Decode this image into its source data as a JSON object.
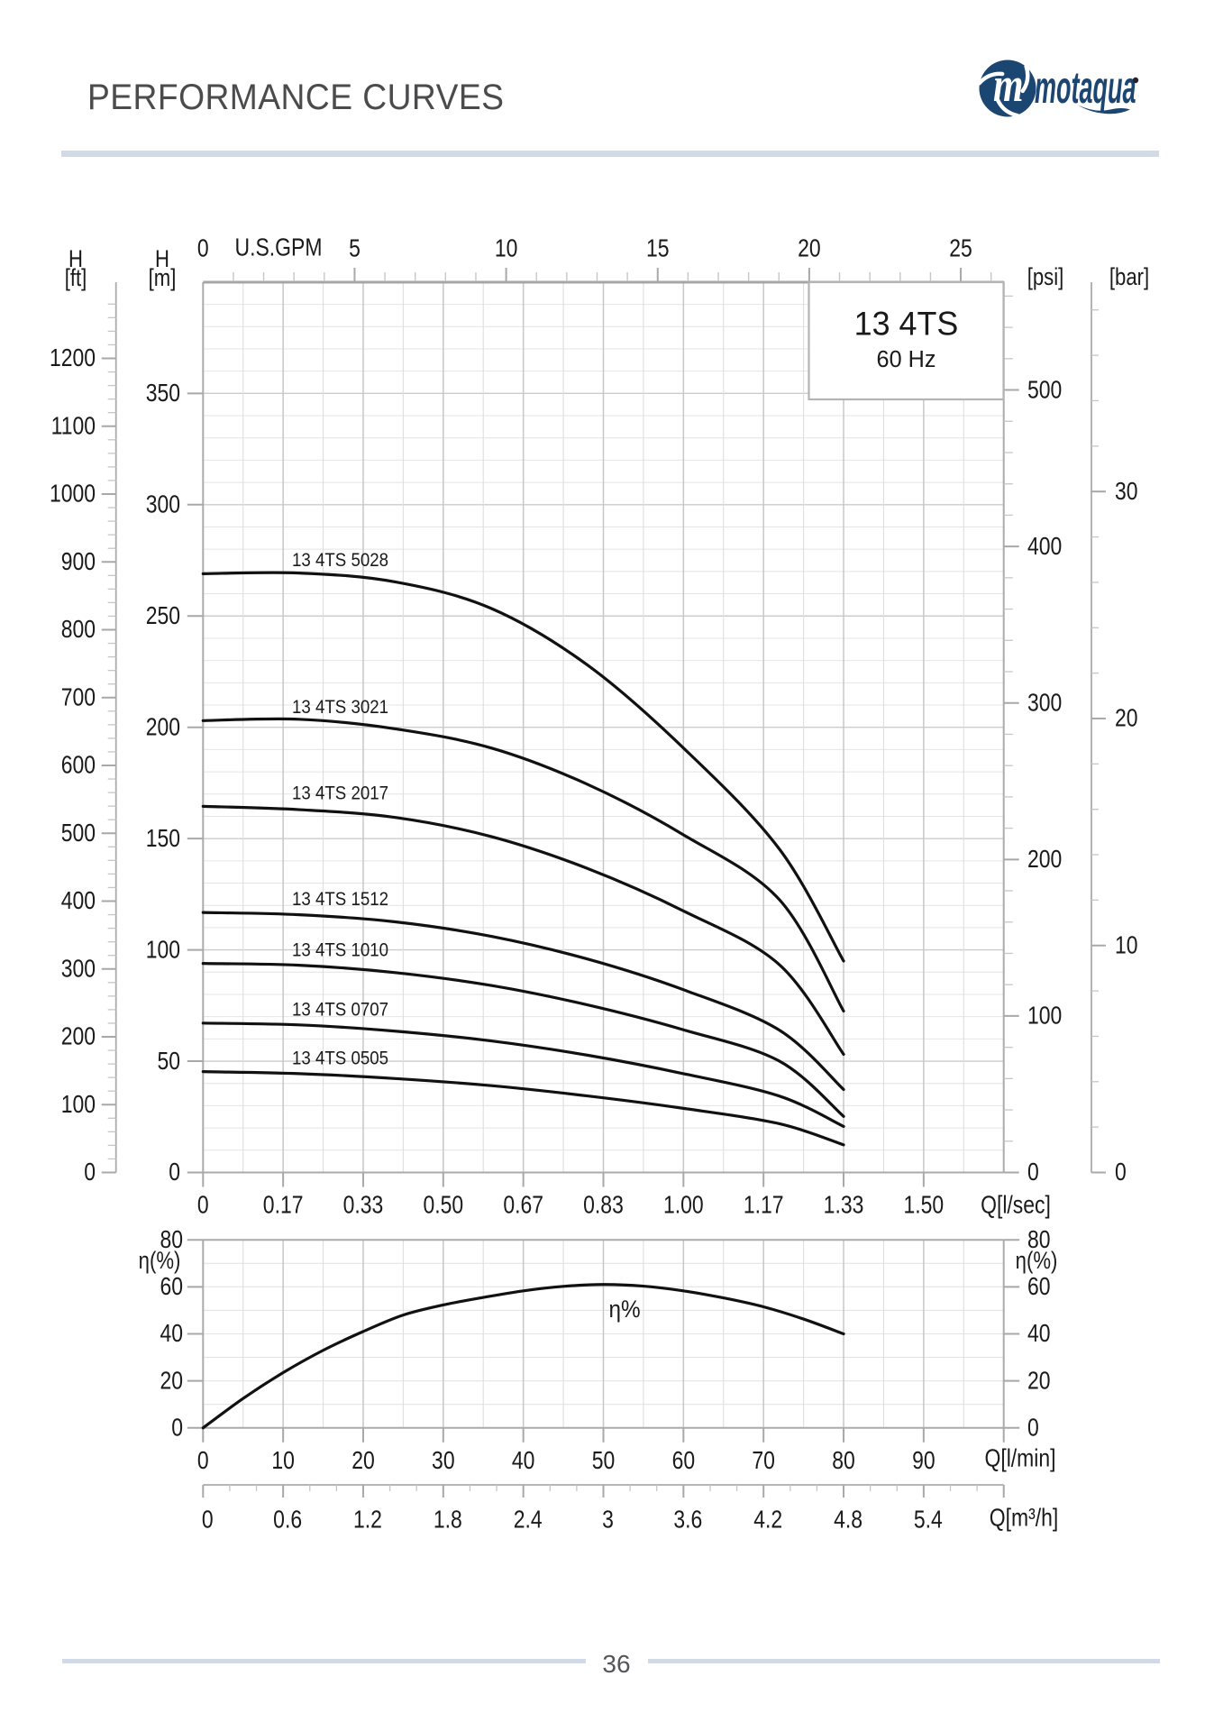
{
  "header": {
    "title": "PERFORMANCE CURVES",
    "rule_color": "#d2d9e7"
  },
  "logo": {
    "brand": "motaqua",
    "monogram": "m",
    "registered_mark": "®",
    "color": "#1c4672"
  },
  "footer": {
    "page_number": "36",
    "rule_color": "#d2d9e7"
  },
  "chart_data": [
    {
      "id": "head-curves",
      "type": "line",
      "title": "13 4TS",
      "subtitle": "60 Hz",
      "x_unit": "l/min",
      "x_range": [
        0,
        100
      ],
      "y_unit": "m",
      "y_range": [
        0,
        400
      ],
      "grid": "on",
      "legend_position": "labels-on-curves",
      "axes": {
        "top": {
          "title": "U.S.GPM",
          "ticks": [
            0,
            5,
            10,
            15,
            20,
            25
          ],
          "minor_step": 1
        },
        "bottom": {
          "title": "Q[l/sec]",
          "tick_labels": [
            "0",
            "0.17",
            "0.33",
            "0.50",
            "0.67",
            "0.83",
            "1.00",
            "1.17",
            "1.33",
            "1.50"
          ],
          "step_lmin": 10
        },
        "left_outer": {
          "title": "H",
          "unit": "[ft]",
          "ticks": [
            0,
            100,
            200,
            300,
            400,
            500,
            600,
            700,
            800,
            900,
            1000,
            1100,
            1200
          ],
          "minor_step": 20
        },
        "left_inner": {
          "title": "H",
          "unit": "[m]",
          "ticks": [
            0,
            50,
            100,
            150,
            200,
            250,
            300,
            350
          ]
        },
        "right_inner": {
          "unit": "[psi]",
          "ticks": [
            0,
            100,
            200,
            300,
            400,
            500
          ],
          "minor_step": 20
        },
        "right_outer": {
          "unit": "[bar]",
          "ticks": [
            0,
            10,
            20,
            30
          ],
          "minor_step": 2
        }
      },
      "series": [
        {
          "name": "13 4TS 5028",
          "points": [
            [
              0,
              269
            ],
            [
              12,
              269.3
            ],
            [
              24,
              265.3
            ],
            [
              36,
              253.4
            ],
            [
              48,
              228
            ],
            [
              60,
              190.7
            ],
            [
              72,
              145.2
            ],
            [
              80,
              95
            ]
          ]
        },
        {
          "name": "13 4TS 3021",
          "points": [
            [
              0,
              203
            ],
            [
              12,
              203.6
            ],
            [
              24,
              199.3
            ],
            [
              36,
              190.7
            ],
            [
              48,
              174.4
            ],
            [
              60,
              151.7
            ],
            [
              72,
              122.5
            ],
            [
              80,
              72.5
            ]
          ]
        },
        {
          "name": "13 4TS 2017",
          "points": [
            [
              0,
              164.5
            ],
            [
              12,
              163
            ],
            [
              24,
              159.5
            ],
            [
              36,
              150.9
            ],
            [
              48,
              136.6
            ],
            [
              60,
              117.5
            ],
            [
              72,
              93.3
            ],
            [
              80,
              53.1
            ]
          ]
        },
        {
          "name": "13 4TS 1512",
          "points": [
            [
              0,
              116.8
            ],
            [
              12,
              115.8
            ],
            [
              24,
              112.6
            ],
            [
              36,
              106.1
            ],
            [
              48,
              95.9
            ],
            [
              60,
              82.1
            ],
            [
              72,
              63.9
            ],
            [
              80,
              37.3
            ]
          ]
        },
        {
          "name": "13 4TS 1010",
          "points": [
            [
              0,
              93.9
            ],
            [
              12,
              93.1
            ],
            [
              24,
              89.8
            ],
            [
              36,
              84
            ],
            [
              48,
              75.3
            ],
            [
              60,
              64.1
            ],
            [
              72,
              50
            ],
            [
              80,
              25.2
            ]
          ]
        },
        {
          "name": "13 4TS 0707",
          "points": [
            [
              0,
              67.1
            ],
            [
              12,
              66.3
            ],
            [
              24,
              63.5
            ],
            [
              36,
              59.1
            ],
            [
              48,
              52.7
            ],
            [
              60,
              44.4
            ],
            [
              72,
              34.3
            ],
            [
              80,
              20.7
            ]
          ]
        },
        {
          "name": "13 4TS 0505",
          "points": [
            [
              0,
              45.3
            ],
            [
              12,
              44.4
            ],
            [
              24,
              42.2
            ],
            [
              36,
              39
            ],
            [
              48,
              34.4
            ],
            [
              60,
              28.8
            ],
            [
              72,
              21.9
            ],
            [
              80,
              12.4
            ]
          ]
        }
      ]
    },
    {
      "id": "efficiency",
      "type": "line",
      "title": "η%",
      "x_unit": "l/min",
      "x_range": [
        0,
        100
      ],
      "y_unit": "η(%)",
      "y_range": [
        0,
        80
      ],
      "grid": "on",
      "axes": {
        "left": {
          "title": "η(%)",
          "ticks": [
            0,
            20,
            40,
            60,
            80
          ],
          "minor_step": 10
        },
        "right": {
          "title": "η(%)",
          "ticks": [
            0,
            20,
            40,
            60,
            80
          ],
          "minor_step": 10
        },
        "bottom_lmin": {
          "title": "Q[l/min]",
          "ticks": [
            0,
            10,
            20,
            30,
            40,
            50,
            60,
            70,
            80,
            90
          ]
        },
        "bottom_m3h": {
          "title": "Q[m³/h]",
          "tick_labels": [
            "0",
            "0.6",
            "1.2",
            "1.8",
            "2.4",
            "3",
            "3.6",
            "4.2",
            "4.8",
            "5.4"
          ],
          "minor_step_m3h": 0.2
        }
      },
      "series": [
        {
          "name": "η%",
          "points": [
            [
              0,
              0
            ],
            [
              5,
              12.5
            ],
            [
              10,
              23.5
            ],
            [
              15,
              33
            ],
            [
              20,
              41
            ],
            [
              25,
              48
            ],
            [
              30,
              52.3
            ],
            [
              35,
              55.5
            ],
            [
              40,
              58.3
            ],
            [
              45,
              60.2
            ],
            [
              50,
              61
            ],
            [
              55,
              60.3
            ],
            [
              60,
              58.3
            ],
            [
              65,
              55.3
            ],
            [
              70,
              51.5
            ],
            [
              75,
              46.3
            ],
            [
              80,
              40
            ]
          ]
        }
      ]
    }
  ]
}
